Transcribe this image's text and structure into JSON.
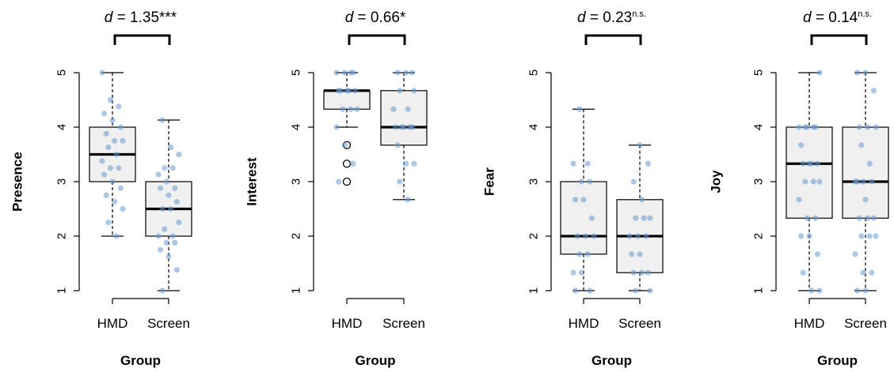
{
  "chart_data": [
    {
      "type": "box",
      "ylabel": "Presence",
      "xlabel": "Group",
      "categories": [
        "HMD",
        "Screen"
      ],
      "ylim": [
        1,
        5
      ],
      "yticks": [
        "1",
        "2",
        "3",
        "4",
        "5"
      ],
      "annotation": {
        "prefix": "d",
        "value": " = 1.35",
        "sig": "***"
      },
      "boxes": [
        {
          "whisker_low": 2,
          "q1": 3,
          "median": 3.5,
          "q3": 4,
          "whisker_high": 5,
          "outliers": []
        },
        {
          "whisker_low": 1,
          "q1": 2,
          "median": 2.5,
          "q3": 3,
          "whisker_high": 4.13,
          "outliers": []
        }
      ],
      "points": [
        [
          5,
          4.5,
          4.38,
          4.25,
          4.13,
          4,
          3.88,
          3.75,
          3.75,
          3.63,
          3.5,
          3.38,
          3.25,
          3.25,
          3.13,
          3,
          2.88,
          2.75,
          2.63,
          2.5,
          2.25,
          2
        ],
        [
          4.13,
          3.63,
          3.5,
          3.25,
          3.25,
          3.13,
          3,
          2.88,
          2.88,
          2.75,
          2.63,
          2.5,
          2.5,
          2.25,
          2.13,
          2,
          2,
          1.88,
          1.88,
          1.75,
          1.63,
          1.38,
          1
        ]
      ]
    },
    {
      "type": "box",
      "ylabel": "Interest",
      "xlabel": "Group",
      "categories": [
        "HMD",
        "Screen"
      ],
      "ylim": [
        1,
        5
      ],
      "yticks": [
        "1",
        "2",
        "3",
        "4",
        "5"
      ],
      "annotation": {
        "prefix": "d",
        "value": " = 0.66",
        "sig": "*"
      },
      "boxes": [
        {
          "whisker_low": 4,
          "q1": 4.33,
          "median": 4.67,
          "q3": 4.67,
          "whisker_high": 5,
          "outliers": [
            3.67,
            3.33,
            3
          ]
        },
        {
          "whisker_low": 2.67,
          "q1": 3.67,
          "median": 4,
          "q3": 4.67,
          "whisker_high": 5,
          "outliers": []
        }
      ],
      "points": [
        [
          5,
          5,
          5,
          5,
          4.67,
          4.67,
          4.67,
          4.67,
          4.67,
          4.33,
          4.33,
          4.33,
          4,
          3.67,
          3.33,
          3
        ],
        [
          5,
          5,
          5,
          4.67,
          4.67,
          4.33,
          4.33,
          4,
          4,
          4,
          4,
          4,
          3.67,
          3.33,
          3.33,
          3,
          2.67
        ]
      ]
    },
    {
      "type": "box",
      "ylabel": "Fear",
      "xlabel": "Group",
      "categories": [
        "HMD",
        "Screen"
      ],
      "ylim": [
        1,
        5
      ],
      "yticks": [
        "1",
        "2",
        "3",
        "4",
        "5"
      ],
      "annotation": {
        "prefix": "d",
        "value": " = 0.23",
        "sig": "n.s."
      },
      "boxes": [
        {
          "whisker_low": 1,
          "q1": 1.67,
          "median": 2,
          "q3": 3,
          "whisker_high": 4.33,
          "outliers": []
        },
        {
          "whisker_low": 1,
          "q1": 1.33,
          "median": 2,
          "q3": 2.67,
          "whisker_high": 3.67,
          "outliers": []
        }
      ],
      "points": [
        [
          4.33,
          3.33,
          3.33,
          3,
          3,
          2.67,
          2.67,
          2.33,
          2,
          2,
          2,
          1.67,
          1.67,
          1.33,
          1.33,
          1,
          1
        ],
        [
          3.67,
          3.33,
          3,
          2.67,
          2.33,
          2.33,
          2.33,
          2,
          2,
          2,
          1.67,
          1.67,
          1.33,
          1.33,
          1.33,
          1,
          1
        ]
      ]
    },
    {
      "type": "box",
      "ylabel": "Joy",
      "xlabel": "Group",
      "categories": [
        "HMD",
        "Screen"
      ],
      "ylim": [
        1,
        5
      ],
      "yticks": [
        "1",
        "2",
        "3",
        "4",
        "5"
      ],
      "annotation": {
        "prefix": "d",
        "value": " = 0.14",
        "sig": "n.s."
      },
      "boxes": [
        {
          "whisker_low": 1,
          "q1": 2.33,
          "median": 3.33,
          "q3": 4,
          "whisker_high": 5,
          "outliers": []
        },
        {
          "whisker_low": 1,
          "q1": 2.33,
          "median": 3,
          "q3": 4,
          "whisker_high": 5,
          "outliers": []
        }
      ],
      "points": [
        [
          5,
          4,
          4,
          4,
          4,
          4,
          3.67,
          3.33,
          3.33,
          3.33,
          3.33,
          3,
          3,
          3,
          2.67,
          2.33,
          2.33,
          2,
          2,
          1.67,
          1.33,
          1,
          1
        ],
        [
          5,
          5,
          4.67,
          4,
          4,
          4,
          3.67,
          3.33,
          3,
          3,
          3,
          3,
          2.67,
          2.33,
          2.33,
          2.33,
          2,
          2,
          2,
          1.67,
          1.33,
          1.33,
          1,
          1
        ]
      ]
    }
  ],
  "colors": {
    "box_fill": "#f0f0f0",
    "box_stroke": "#000000",
    "median": "#000000",
    "point": "#6a9bcf",
    "axis": "#000000"
  }
}
